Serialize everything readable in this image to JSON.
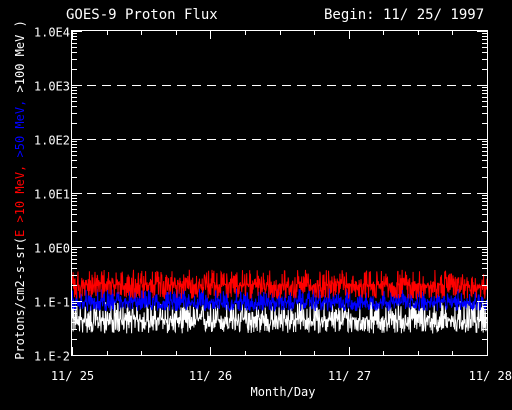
{
  "chart_data": {
    "type": "line",
    "title": "GOES-9 Proton Flux",
    "subtitle": "Begin: 11/ 25/ 1997",
    "xlabel": "Month/Day",
    "ylabel_parts": [
      {
        "text": "Protons/cm2-s-sr(",
        "color": "#ffffff"
      },
      {
        "text": "E >10 MeV, ",
        "color": "#ff0000"
      },
      {
        "text": ">50 MeV, ",
        "color": "#0000ff"
      },
      {
        "text": ">100 MeV )",
        "color": "#ffffff"
      }
    ],
    "yscale": "log",
    "ylim": [
      0.01,
      10000
    ],
    "yticks": [
      {
        "value": 0.01,
        "label": "1.E-2"
      },
      {
        "value": 0.1,
        "label": "1.E-1"
      },
      {
        "value": 1,
        "label": "1.0E0"
      },
      {
        "value": 10,
        "label": "1.0E1"
      },
      {
        "value": 100,
        "label": "1.0E2"
      },
      {
        "value": 1000,
        "label": "1.0E3"
      },
      {
        "value": 10000,
        "label": "1.0E4"
      }
    ],
    "gridlines_dashed": [
      1,
      10,
      100,
      1000
    ],
    "xlim": [
      0,
      3
    ],
    "xticks": [
      {
        "value": 0,
        "label": "11/ 25"
      },
      {
        "value": 1,
        "label": "11/ 26"
      },
      {
        "value": 2,
        "label": "11/ 27"
      },
      {
        "value": 3,
        "label": "11/ 28"
      }
    ],
    "series": [
      {
        "name": "E >10 MeV",
        "color": "#ff0000",
        "typical": 0.2,
        "low": 0.11,
        "high": 0.38
      },
      {
        "name": ">50 MeV",
        "color": "#0000ff",
        "typical": 0.095,
        "low": 0.065,
        "high": 0.17
      },
      {
        "name": ">100 MeV",
        "color": "#ffffff",
        "typical": 0.045,
        "low": 0.025,
        "high": 0.1
      }
    ]
  }
}
